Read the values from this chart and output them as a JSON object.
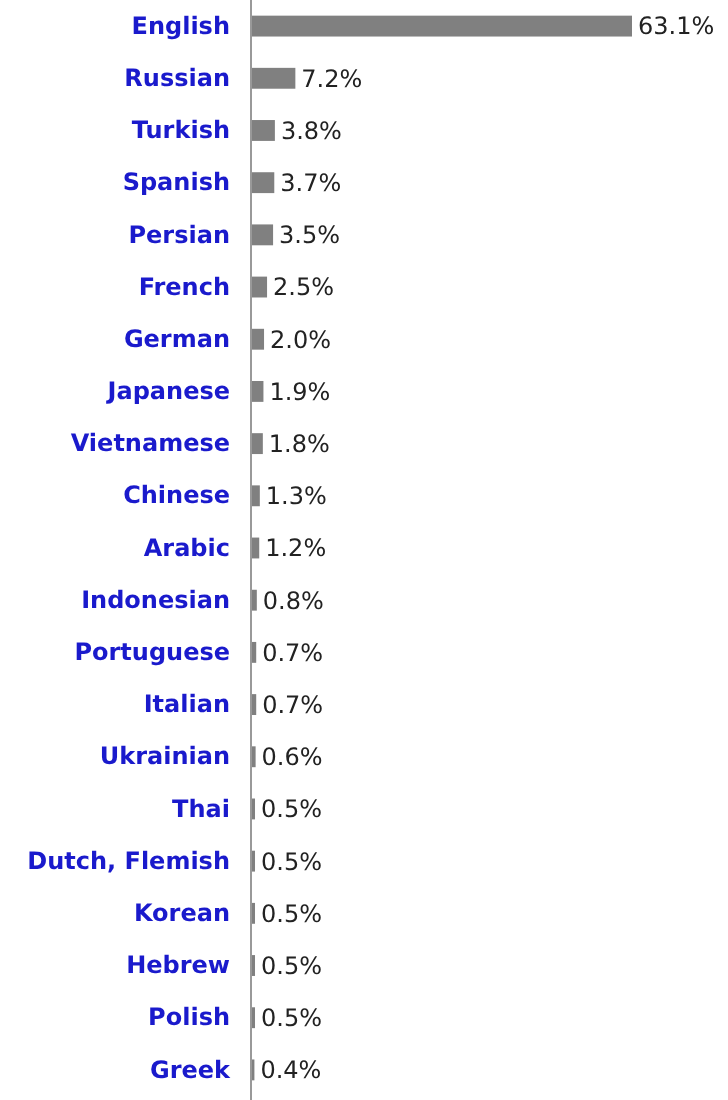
{
  "chart_data": {
    "type": "bar",
    "orientation": "horizontal",
    "categories": [
      "English",
      "Russian",
      "Turkish",
      "Spanish",
      "Persian",
      "French",
      "German",
      "Japanese",
      "Vietnamese",
      "Chinese",
      "Arabic",
      "Indonesian",
      "Portuguese",
      "Italian",
      "Ukrainian",
      "Thai",
      "Dutch, Flemish",
      "Korean",
      "Hebrew",
      "Polish",
      "Greek"
    ],
    "values": [
      63.1,
      7.2,
      3.8,
      3.7,
      3.5,
      2.5,
      2.0,
      1.9,
      1.8,
      1.3,
      1.2,
      0.8,
      0.7,
      0.7,
      0.6,
      0.5,
      0.5,
      0.5,
      0.5,
      0.5,
      0.4
    ],
    "value_labels": [
      "63.1%",
      "7.2%",
      "3.8%",
      "3.7%",
      "3.5%",
      "2.5%",
      "2.0%",
      "1.9%",
      "1.8%",
      "1.3%",
      "1.2%",
      "0.8%",
      "0.7%",
      "0.7%",
      "0.6%",
      "0.5%",
      "0.5%",
      "0.5%",
      "0.5%",
      "0.5%",
      "0.4%"
    ],
    "color": "#808080"
  }
}
